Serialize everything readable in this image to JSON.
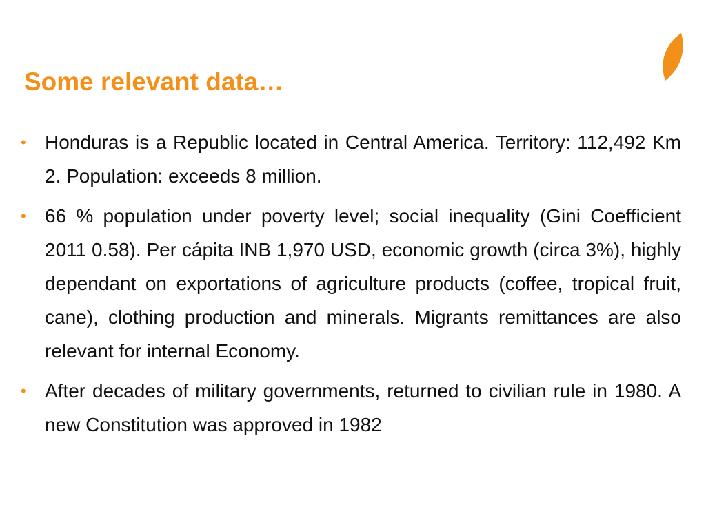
{
  "header": {
    "title": "Some relevant data…"
  },
  "bullets": [
    "Honduras is a Republic located in Central America. Territory: 112,492 Km 2. Population: exceeds 8 million.",
    "66 % population under poverty level; social inequality (Gini Coefficient 2011 0.58). Per cápita INB 1,970 USD, economic growth (circa 3%), highly dependant on exportations of agriculture products (coffee, tropical fruit, cane), clothing production and minerals. Migrants remittances are also relevant for internal Economy.",
    "After decades of military governments, returned to civilian rule in 1980. A new Constitution was approved in 1982"
  ]
}
